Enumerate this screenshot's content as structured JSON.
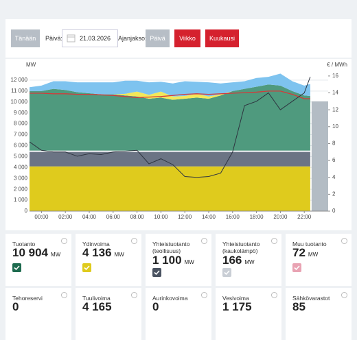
{
  "controls": {
    "today": "Tänään",
    "date_label": "Päivä:",
    "date": "21.03.2026",
    "period_label": "Ajanjakso:",
    "periods": [
      "Päivä",
      "Viikko",
      "Kuukausi"
    ]
  },
  "chart_data": {
    "type": "area",
    "y_label": "MW",
    "y2_label": "€ / MWh",
    "x": [
      -1,
      0,
      1,
      2,
      3,
      4,
      5,
      6,
      7,
      8,
      9,
      10,
      11,
      12,
      13,
      14,
      15,
      16,
      17,
      18,
      19,
      20,
      21,
      22,
      22.5
    ],
    "xlim": [
      -1,
      24
    ],
    "xticks": [
      {
        "value": 0,
        "label": "00:00"
      },
      {
        "value": 2,
        "label": "02:00"
      },
      {
        "value": 4,
        "label": "04:00"
      },
      {
        "value": 6,
        "label": "06:00"
      },
      {
        "value": 8,
        "label": "08:00"
      },
      {
        "value": 10,
        "label": "10:00"
      },
      {
        "value": 12,
        "label": "12:00"
      },
      {
        "value": 14,
        "label": "14:00"
      },
      {
        "value": 16,
        "label": "16:00"
      },
      {
        "value": 18,
        "label": "18:00"
      },
      {
        "value": 20,
        "label": "20:00"
      },
      {
        "value": 22,
        "label": "22:00"
      }
    ],
    "ylim": [
      0,
      13000
    ],
    "yticks": [
      0,
      {
        "value": 1000,
        "label": "1 000"
      },
      {
        "value": 2000,
        "label": "2 000"
      },
      {
        "value": 3000,
        "label": "3 000"
      },
      {
        "value": 4000,
        "label": "4 000"
      },
      {
        "value": 5000,
        "label": "5 000"
      },
      {
        "value": 6000,
        "label": "6 000"
      },
      {
        "value": 7000,
        "label": "7 000"
      },
      {
        "value": 8000,
        "label": "8 000"
      },
      {
        "value": 9000,
        "label": "9 000"
      },
      {
        "value": 10000,
        "label": "10 000"
      },
      {
        "value": 11000,
        "label": "11 000"
      },
      {
        "value": 12000,
        "label": "12 000"
      }
    ],
    "y2lim": [
      0,
      16.8
    ],
    "y2ticks": [
      0,
      2,
      4,
      6,
      8,
      10,
      12,
      14,
      16
    ],
    "grid": true,
    "series": [
      {
        "color": "#dfcb1d",
        "values": [
          4100,
          4100,
          4100,
          4100,
          4100,
          4100,
          4100,
          4100,
          4100,
          4100,
          4100,
          4100,
          4100,
          4100,
          4100,
          4100,
          4100,
          4100,
          4100,
          4100,
          4100,
          4100,
          4100,
          4100,
          4100
        ]
      },
      {
        "color": "#6b7484",
        "values": [
          1300,
          1300,
          1300,
          1300,
          1300,
          1300,
          1300,
          1300,
          1300,
          1300,
          1300,
          1300,
          1300,
          1300,
          1300,
          1300,
          1300,
          1300,
          1300,
          1300,
          1300,
          1300,
          1300,
          1300,
          1300
        ]
      },
      {
        "color": "#dcdfe3",
        "values": [
          150,
          150,
          150,
          150,
          150,
          150,
          150,
          150,
          150,
          150,
          150,
          150,
          150,
          150,
          150,
          150,
          150,
          150,
          150,
          150,
          150,
          150,
          150,
          150,
          150
        ]
      },
      {
        "color": "#4f9a7e",
        "values": [
          5450,
          5450,
          5650,
          5550,
          5350,
          5250,
          5150,
          5150,
          5050,
          4950,
          4750,
          4850,
          4650,
          4750,
          4850,
          4750,
          5050,
          5450,
          5650,
          5850,
          6050,
          5950,
          5450,
          5050,
          5000
        ]
      },
      {
        "color": "#f3e85a",
        "values": [
          0,
          0,
          0,
          0,
          0,
          0,
          0,
          0,
          150,
          450,
          350,
          550,
          300,
          250,
          350,
          200,
          100,
          0,
          0,
          0,
          0,
          0,
          0,
          0,
          0
        ]
      },
      {
        "color": "#7ec3ef",
        "values": [
          350,
          500,
          700,
          800,
          900,
          1000,
          1100,
          1100,
          1200,
          1000,
          1150,
          900,
          1200,
          1350,
          1100,
          1300,
          1000,
          800,
          700,
          800,
          700,
          1100,
          900,
          900,
          1100
        ]
      }
    ],
    "lines": [
      {
        "color": "#d33a3a",
        "values": [
          10800,
          10800,
          10750,
          10750,
          10700,
          10700,
          10650,
          10600,
          10500,
          10400,
          10450,
          10500,
          10600,
          10700,
          10750,
          10700,
          10750,
          10800,
          10850,
          10900,
          11000,
          11000,
          10700,
          10300,
          10300
        ]
      },
      {
        "color": "#2e3540",
        "axis": "y2",
        "values": [
          8.2,
          7.2,
          7.0,
          7.0,
          6.5,
          6.8,
          6.7,
          7.0,
          7.1,
          7.2,
          5.6,
          6.2,
          5.5,
          4.1,
          4.0,
          4.1,
          4.5,
          7.0,
          12.5,
          13.0,
          14.0,
          12.0,
          13.0,
          14.0,
          15.9
        ]
      }
    ]
  },
  "cards": [
    {
      "label": "Tuotanto",
      "value": "10 904",
      "unit": "MW",
      "color": "#1e6b4f"
    },
    {
      "label": "Ydinvoima",
      "value": "4 136",
      "unit": "MW",
      "color": "#dfcb1d"
    },
    {
      "label": "Yhteistuotanto (teollisuus)",
      "value": "1 100",
      "unit": "MW",
      "color": "#4a5361"
    },
    {
      "label": "Yhteistuotanto (kaukolämpö)",
      "value": "166",
      "unit": "MW",
      "color": "#c9ced5"
    },
    {
      "label": "Muu tuotanto",
      "value": "72",
      "unit": "MW",
      "color": "#e9a3b3"
    },
    {
      "label": "Tehoreservi",
      "value": "0"
    },
    {
      "label": "Tuulivoima",
      "value": "4 165"
    },
    {
      "label": "Aurinkovoima",
      "value": "0"
    },
    {
      "label": "Vesivoima",
      "value": "1 175"
    },
    {
      "label": "Sähkövarastot",
      "value": "85"
    }
  ]
}
